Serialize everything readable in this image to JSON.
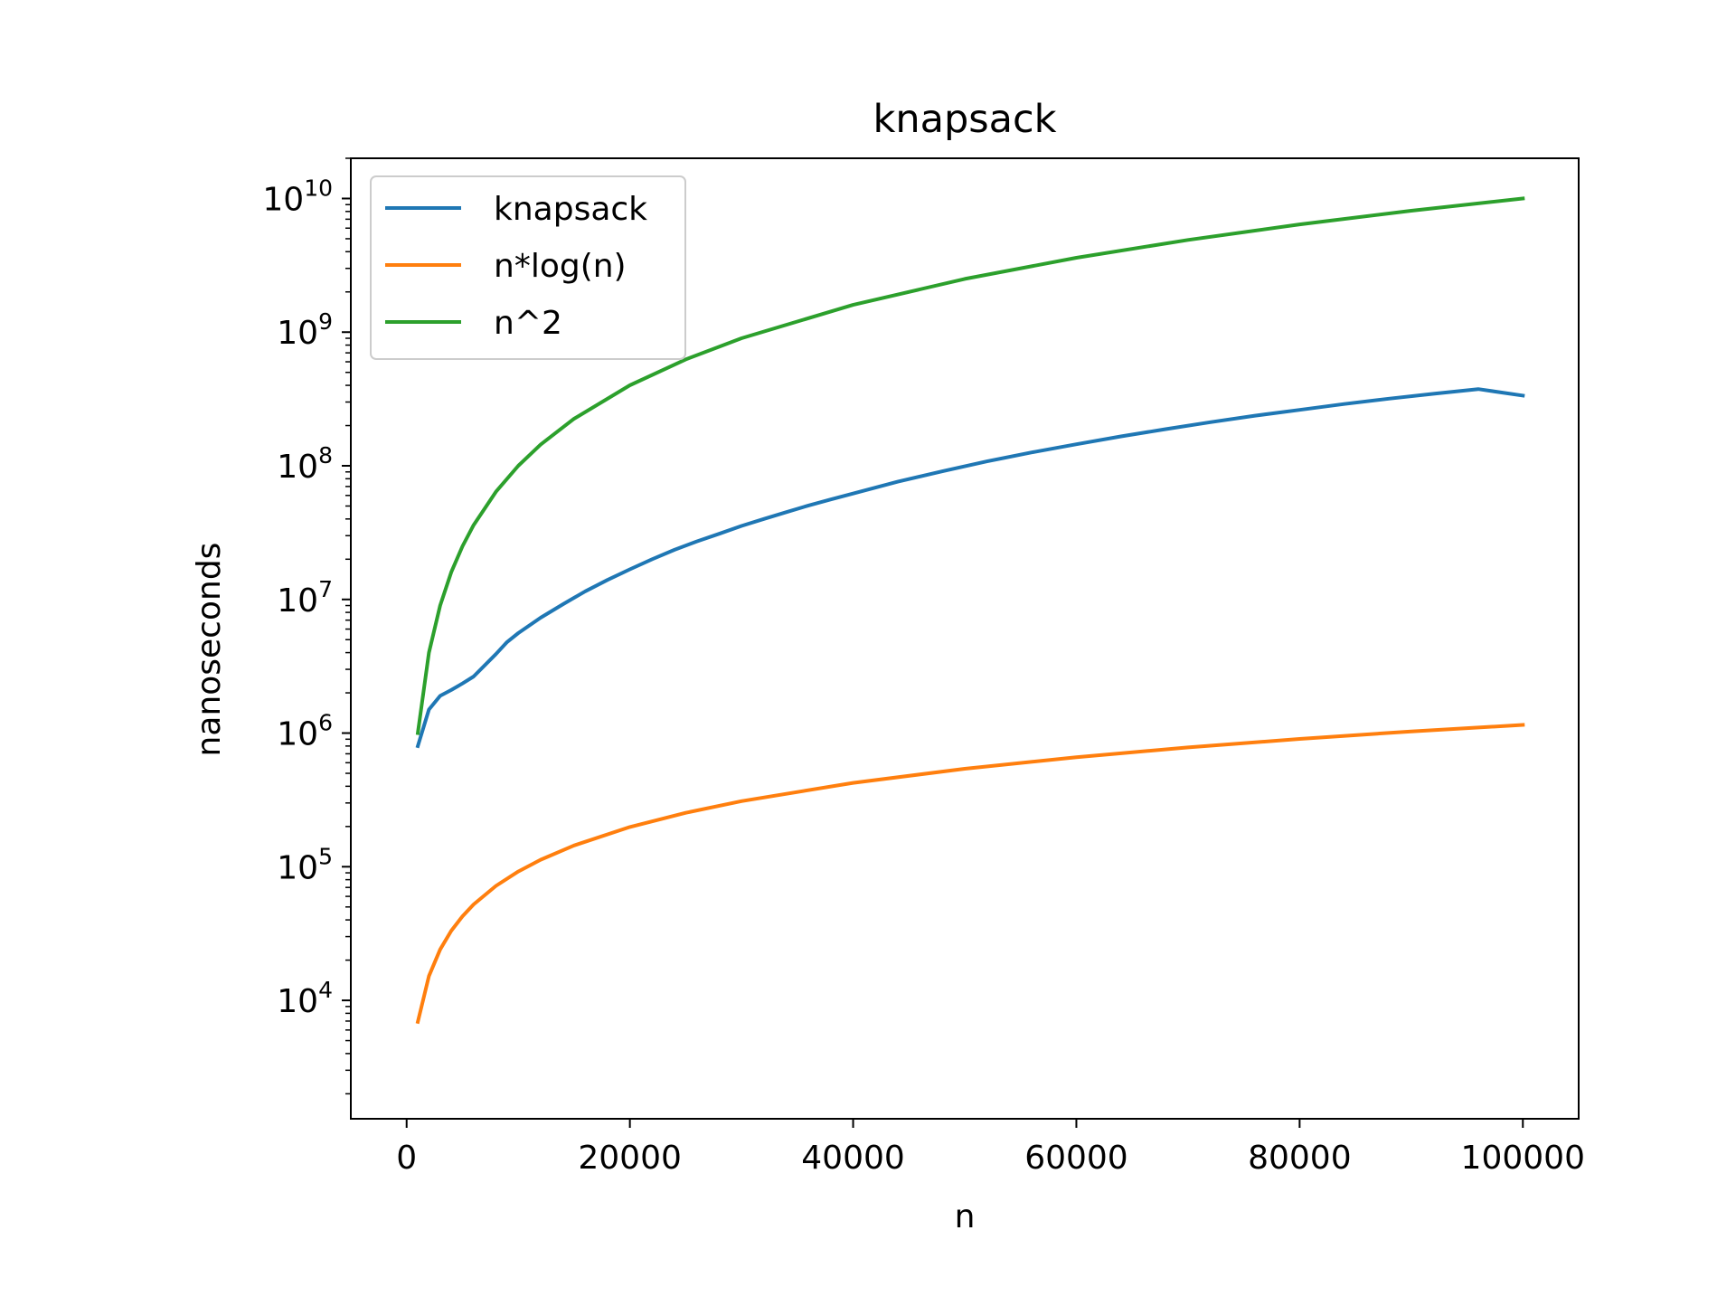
{
  "chart_data": {
    "type": "line",
    "title": "knapsack",
    "xlabel": "n",
    "ylabel": "nanoseconds",
    "xlim": [
      -5000,
      105000
    ],
    "ylim": [
      1300,
      20000000000
    ],
    "yscale": "log",
    "grid": false,
    "legend_position": "top-left",
    "x_ticks": [
      {
        "value": 0,
        "label": "0"
      },
      {
        "value": 20000,
        "label": "20000"
      },
      {
        "value": 40000,
        "label": "40000"
      },
      {
        "value": 60000,
        "label": "60000"
      },
      {
        "value": 80000,
        "label": "80000"
      },
      {
        "value": 100000,
        "label": "100000"
      }
    ],
    "y_ticks": [
      {
        "value": 10000,
        "base": "10",
        "exp": "4"
      },
      {
        "value": 100000,
        "base": "10",
        "exp": "5"
      },
      {
        "value": 1000000,
        "base": "10",
        "exp": "6"
      },
      {
        "value": 10000000,
        "base": "10",
        "exp": "7"
      },
      {
        "value": 100000000,
        "base": "10",
        "exp": "8"
      },
      {
        "value": 1000000000,
        "base": "10",
        "exp": "9"
      },
      {
        "value": 10000000000,
        "base": "10",
        "exp": "10"
      }
    ],
    "series": [
      {
        "name": "knapsack",
        "color": "#1f77b4",
        "x": [
          1000,
          2000,
          3000,
          4000,
          5000,
          6000,
          8000,
          9000,
          10000,
          12000,
          14000,
          16000,
          18000,
          20000,
          22000,
          24000,
          26000,
          28000,
          30000,
          32000,
          34000,
          36000,
          38000,
          40000,
          44000,
          48000,
          52000,
          56000,
          60000,
          64000,
          68000,
          72000,
          76000,
          80000,
          84000,
          88000,
          92000,
          96000,
          100000
        ],
        "y": [
          800000,
          1500000,
          1900000,
          2100000,
          2350000,
          2650000,
          3900000,
          4800000,
          5600000,
          7300000,
          9200000,
          11500000,
          14000000,
          16800000,
          20000000,
          23500000,
          27200000,
          31000000,
          35500000,
          40000000,
          45000000,
          50500000,
          56000000,
          62000000,
          76000000,
          91000000,
          108000000,
          126000000,
          145000000,
          166000000,
          188000000,
          212000000,
          237000000,
          262000000,
          290000000,
          318000000,
          346000000,
          375000000,
          335000000
        ]
      },
      {
        "name": "n*log(n)",
        "color": "#ff7f0e",
        "x": [
          1000,
          2000,
          3000,
          4000,
          5000,
          6000,
          8000,
          10000,
          12000,
          15000,
          20000,
          25000,
          30000,
          40000,
          50000,
          60000,
          70000,
          80000,
          90000,
          100000
        ],
        "y": [
          6908,
          15202,
          24019,
          33176,
          42586,
          52197,
          71899,
          92103,
          112708,
          144235,
          198070,
          253204,
          309284,
          423865,
          540989,
          660258,
          781458,
          904368,
          1028772,
          1151293
        ]
      },
      {
        "name": "n^2",
        "color": "#2ca02c",
        "x": [
          1000,
          2000,
          3000,
          4000,
          5000,
          6000,
          8000,
          10000,
          12000,
          15000,
          20000,
          25000,
          30000,
          40000,
          50000,
          60000,
          70000,
          80000,
          90000,
          100000
        ],
        "y": [
          1000000,
          4000000,
          9000000,
          16000000,
          25000000,
          36000000,
          64000000,
          100000000,
          144000000,
          225000000,
          400000000,
          625000000,
          900000000,
          1600000000,
          2500000000,
          3600000000,
          4900000000,
          6400000000,
          8100000000,
          10000000000
        ]
      }
    ]
  }
}
